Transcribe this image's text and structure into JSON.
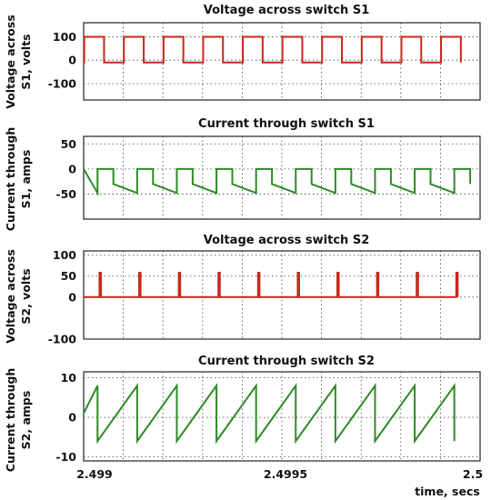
{
  "colors": {
    "red": "#c8281c",
    "green": "#2e8b26",
    "frame": "#222222",
    "grid": "#444444"
  },
  "chart_data": [
    {
      "type": "line",
      "title": "Voltage across switch S1",
      "ylabel": [
        "Voltage across",
        "S1, volts"
      ],
      "yticks": [
        100,
        0,
        -100
      ],
      "ylim": [
        -170,
        160
      ],
      "xlim": [
        2.499,
        2.5
      ],
      "grid": true,
      "color": "red",
      "waveform": "square",
      "high": 100,
      "low": -10,
      "period_s": 0.0001,
      "high_fraction": 0.5,
      "series": [
        {
          "values_desc": "square wave between about -10 V and 100 V"
        }
      ]
    },
    {
      "type": "line",
      "title": "Current through switch S1",
      "ylabel": [
        "Current through",
        "S1, amps"
      ],
      "yticks": [
        50,
        0,
        -50
      ],
      "ylim": [
        -100,
        65
      ],
      "xlim": [
        2.499,
        2.5
      ],
      "grid": true,
      "color": "green",
      "waveform": "pulse",
      "zero": 0,
      "dip_start": -30,
      "dip_end": -48,
      "period_s": 0.0001,
      "dip_fraction": 0.6,
      "series": [
        {
          "values_desc": "zero during off interval, negative ramp from about -30 A to -48 A during on interval"
        }
      ]
    },
    {
      "type": "line",
      "title": "Voltage across switch S2",
      "ylabel": [
        "Voltage across",
        "S2, volts"
      ],
      "yticks": [
        100,
        50,
        0,
        -100
      ],
      "ylim": [
        -100,
        110
      ],
      "xlim": [
        2.499,
        2.5
      ],
      "grid": true,
      "color": "red",
      "waveform": "spikes",
      "base": 0,
      "spike_height": 58,
      "period_s": 0.0001,
      "series": [
        {
          "values_desc": "zero with narrow pulses of about 58 V each period"
        }
      ]
    },
    {
      "type": "line",
      "title": "Current through switch S2",
      "ylabel": [
        "Current through",
        "S2, amps"
      ],
      "yticks": [
        10,
        0,
        -10
      ],
      "ylim": [
        -11,
        11.5
      ],
      "xlim": [
        2.499,
        2.5
      ],
      "grid": true,
      "color": "green",
      "waveform": "sawtooth",
      "min": -6,
      "max": 8,
      "period_s": 0.0001,
      "series": [
        {
          "values_desc": "sawtooth ramping from about -6 A to 8 A each period"
        }
      ]
    }
  ],
  "x_axis": {
    "ticks": [
      "2.499",
      "2.4995",
      "2.5"
    ],
    "tick_values": [
      2.499,
      2.4995,
      2.5
    ],
    "label": "time, secs"
  }
}
